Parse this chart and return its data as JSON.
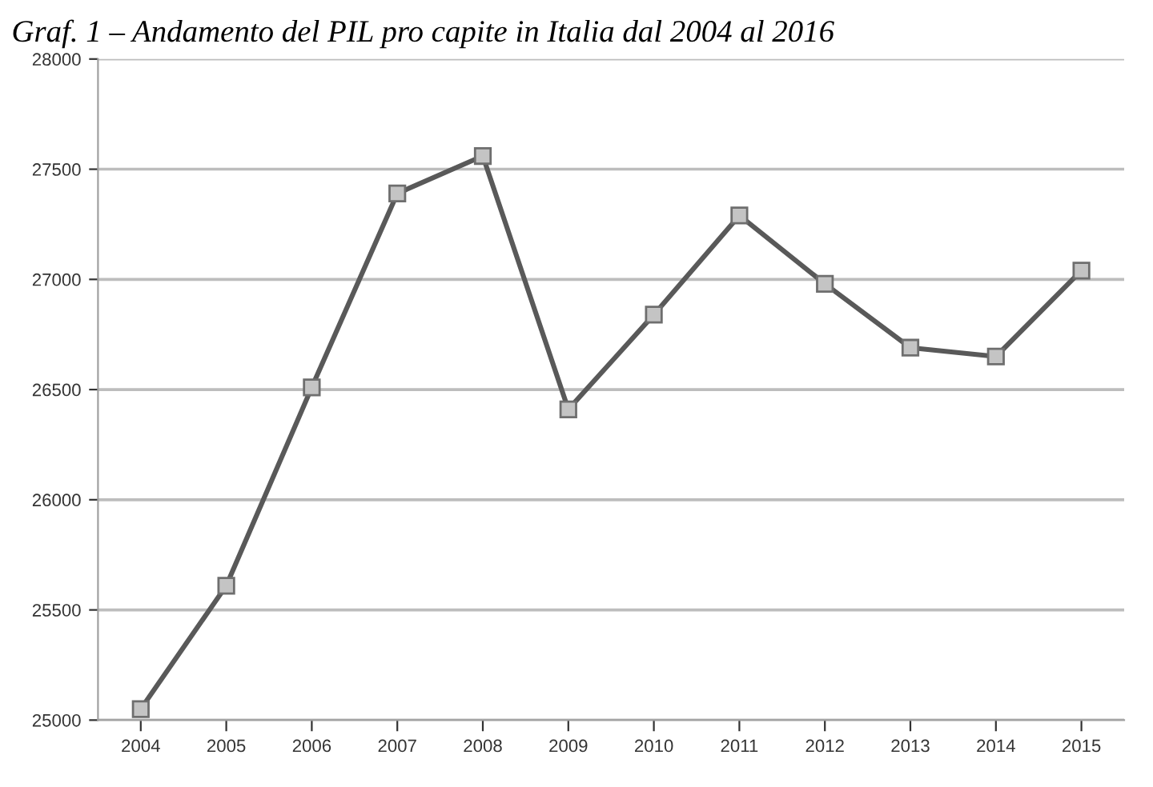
{
  "chart_data": {
    "type": "line",
    "title": "Graf. 1 – Andamento del PIL pro capite in Italia dal 2004 al 2016",
    "categories": [
      "2004",
      "2005",
      "2006",
      "2007",
      "2008",
      "2009",
      "2010",
      "2011",
      "2012",
      "2013",
      "2014",
      "2015"
    ],
    "series": [
      {
        "color": "#595959",
        "values": [
          25050,
          25610,
          26510,
          27390,
          27560,
          26410,
          26840,
          27290,
          26980,
          26690,
          26650,
          27040
        ]
      }
    ],
    "ylim": [
      25000,
      28000
    ],
    "yticks": [
      25000,
      25500,
      26000,
      26500,
      27000,
      27500,
      28000
    ],
    "grid": "y",
    "marker": "square",
    "line_style": "solid",
    "legend": false
  }
}
